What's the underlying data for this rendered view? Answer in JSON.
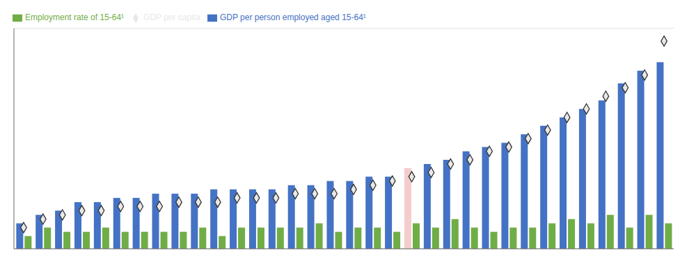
{
  "chart_data": {
    "type": "bar",
    "categories": [
      null,
      null,
      null,
      null,
      null,
      null,
      null,
      null,
      null,
      null,
      null,
      null,
      null,
      null,
      null,
      null,
      null,
      null,
      null,
      null,
      null,
      null,
      null,
      null,
      null,
      null,
      null,
      null,
      null,
      null,
      null,
      null,
      null,
      null
    ],
    "series": [
      {
        "name": "GDP per person employed aged 15-64¹",
        "type": "bar",
        "color": "#4472C4",
        "colors": [
          "#4472C4",
          "#4472C4",
          "#4472C4",
          "#4472C4",
          "#4472C4",
          "#4472C4",
          "#4472C4",
          "#4472C4",
          "#4472C4",
          "#4472C4",
          "#4472C4",
          "#4472C4",
          "#4472C4",
          "#4472C4",
          "#4472C4",
          "#4472C4",
          "#4472C4",
          "#4472C4",
          "#4472C4",
          "#4472C4",
          "#F4CCCC",
          "#4472C4",
          "#4472C4",
          "#4472C4",
          "#4472C4",
          "#4472C4",
          "#4472C4",
          "#4472C4",
          "#4472C4",
          "#4472C4",
          "#4472C4",
          "#4472C4",
          "#4472C4",
          "#4472C4"
        ],
        "values": [
          6,
          8,
          9,
          11,
          11,
          12,
          12,
          13,
          13,
          13,
          14,
          14,
          14,
          14,
          15,
          15,
          16,
          16,
          17,
          17,
          19,
          20,
          21,
          23,
          24,
          25,
          27,
          29,
          31,
          33,
          35,
          39,
          42,
          44
        ]
      },
      {
        "name": "Employment rate of 15-64¹",
        "type": "bar",
        "color": "#70AD47",
        "values": [
          3,
          5,
          4,
          4,
          5,
          4,
          4,
          4,
          4,
          5,
          3,
          5,
          5,
          5,
          5,
          6,
          4,
          5,
          5,
          4,
          6,
          5,
          7,
          5,
          4,
          5,
          5,
          6,
          7,
          6,
          8,
          5,
          8,
          6
        ]
      },
      {
        "name": "GDP per capita",
        "type": "scatter",
        "marker": "diamond",
        "color": "#E8E8E8",
        "values": [
          5,
          7,
          8,
          9,
          9,
          10,
          10,
          10,
          11,
          11,
          11,
          12,
          12,
          12,
          13,
          13,
          13,
          14,
          15,
          16,
          17,
          18,
          20,
          21,
          23,
          24,
          26,
          28,
          31,
          33,
          36,
          38,
          41,
          49
        ]
      }
    ],
    "ylim": [
      0,
      52
    ],
    "yticks": [
      10,
      20,
      30,
      40,
      50
    ],
    "grid": true,
    "legend": "upper left",
    "tick_labels": false
  }
}
